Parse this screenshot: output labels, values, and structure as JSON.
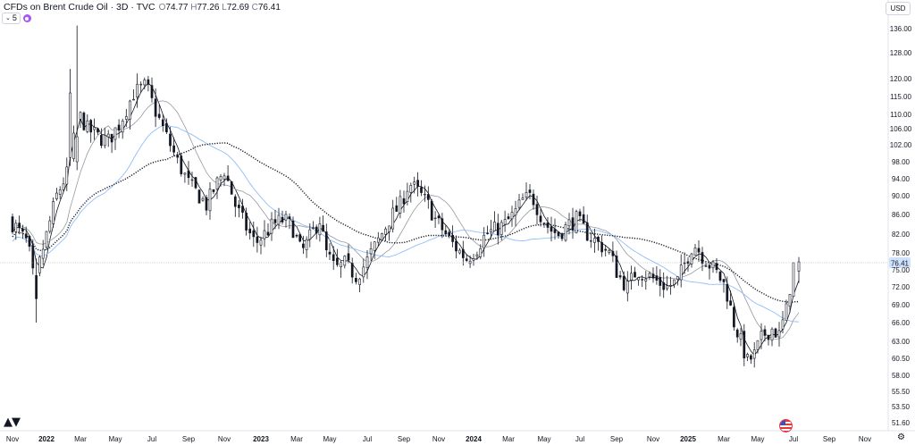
{
  "header": {
    "symbol": "CFDs on Brent Crude Oil · 3D · TVC",
    "open_label": "O",
    "open": "74.77",
    "high_label": "H",
    "high": "77.26",
    "low_label": "L",
    "low": "72.69",
    "close_label": "C",
    "close": "76.41",
    "indicator_count": "5",
    "currency": "USD"
  },
  "branding": {
    "logo_icon": "tradingview-logo-icon",
    "flag_icon": "us-flag-icon",
    "settings_icon": "gear-icon"
  },
  "colors": {
    "candle": "#131722",
    "ma_short": "#131722",
    "ma_mid": "#9598a1",
    "ma_long": "#90bff9",
    "ma_dotted": "#131722",
    "last_price_bg": "#cfe2fb",
    "grid": "#f0f3fa"
  },
  "chart_data": {
    "type": "candlestick",
    "ylim": [
      50.5,
      138.5
    ],
    "y_ticks": [
      "136.00",
      "128.00",
      "120.00",
      "115.00",
      "110.00",
      "106.00",
      "102.00",
      "98.00",
      "94.00",
      "90.00",
      "86.00",
      "82.00",
      "78.00",
      "76.41",
      "75.00",
      "72.00",
      "69.00",
      "66.00",
      "63.00",
      "60.50",
      "58.00",
      "55.50",
      "53.50",
      "51.60"
    ],
    "last_price": 76.41,
    "x_labels": [
      {
        "label": "Nov",
        "t": 0.0
      },
      {
        "label": "2022",
        "t": 2.0
      },
      {
        "label": "Mar",
        "t": 4.0
      },
      {
        "label": "May",
        "t": 6.0
      },
      {
        "label": "Jul",
        "t": 8.0
      },
      {
        "label": "Sep",
        "t": 10.0
      },
      {
        "label": "Nov",
        "t": 12.0
      },
      {
        "label": "2023",
        "t": 14.0
      },
      {
        "label": "Mar",
        "t": 16.0
      },
      {
        "label": "May",
        "t": 18.0
      },
      {
        "label": "Jul",
        "t": 20.0
      },
      {
        "label": "Sep",
        "t": 22.0
      },
      {
        "label": "Nov",
        "t": 24.0
      },
      {
        "label": "2024",
        "t": 26.0
      },
      {
        "label": "Mar",
        "t": 28.0
      },
      {
        "label": "May",
        "t": 30.0
      },
      {
        "label": "Jul",
        "t": 32.0
      },
      {
        "label": "Sep",
        "t": 34.0
      },
      {
        "label": "Nov",
        "t": 36.0
      },
      {
        "label": "2025",
        "t": 38.0
      },
      {
        "label": "Mar",
        "t": 40.0
      },
      {
        "label": "May",
        "t": 42.0
      },
      {
        "label": "Jul",
        "t": 44.0
      },
      {
        "label": "Sep",
        "t": 46.0
      },
      {
        "label": "Nov",
        "t": 48.0
      }
    ],
    "price_path": [
      [
        0.0,
        85
      ],
      [
        0.5,
        83
      ],
      [
        1.1,
        80
      ],
      [
        1.5,
        72
      ],
      [
        2.0,
        79
      ],
      [
        2.8,
        90
      ],
      [
        3.5,
        96
      ],
      [
        4.1,
        110
      ],
      [
        4.6,
        106
      ],
      [
        5.2,
        104
      ],
      [
        5.8,
        103
      ],
      [
        6.4,
        107
      ],
      [
        7.2,
        116
      ],
      [
        7.9,
        118
      ],
      [
        8.3,
        112
      ],
      [
        8.9,
        105
      ],
      [
        9.6,
        98
      ],
      [
        10.2,
        93
      ],
      [
        10.6,
        91
      ],
      [
        11.2,
        88
      ],
      [
        11.8,
        93
      ],
      [
        12.2,
        96
      ],
      [
        12.8,
        88
      ],
      [
        13.3,
        84
      ],
      [
        13.9,
        80
      ],
      [
        14.4,
        82
      ],
      [
        14.9,
        84
      ],
      [
        15.5,
        85
      ],
      [
        16.0,
        83
      ],
      [
        16.5,
        78
      ],
      [
        17.1,
        82
      ],
      [
        17.6,
        85
      ],
      [
        18.0,
        78
      ],
      [
        18.5,
        75
      ],
      [
        19.0,
        76
      ],
      [
        19.6,
        74
      ],
      [
        20.1,
        76
      ],
      [
        20.7,
        80
      ],
      [
        21.4,
        85
      ],
      [
        22.0,
        88
      ],
      [
        22.5,
        93
      ],
      [
        23.0,
        91
      ],
      [
        23.6,
        88
      ],
      [
        24.0,
        85
      ],
      [
        24.6,
        82
      ],
      [
        25.2,
        79
      ],
      [
        25.8,
        77
      ],
      [
        26.4,
        79
      ],
      [
        26.9,
        82
      ],
      [
        27.5,
        83
      ],
      [
        28.0,
        84
      ],
      [
        28.5,
        86
      ],
      [
        29.0,
        89
      ],
      [
        29.5,
        90
      ],
      [
        30.0,
        86
      ],
      [
        30.5,
        83
      ],
      [
        31.0,
        82
      ],
      [
        31.6,
        84
      ],
      [
        32.0,
        85
      ],
      [
        32.6,
        82
      ],
      [
        33.2,
        80
      ],
      [
        33.8,
        78
      ],
      [
        34.3,
        74
      ],
      [
        34.8,
        72
      ],
      [
        35.3,
        75
      ],
      [
        35.9,
        74
      ],
      [
        36.4,
        73
      ],
      [
        37.0,
        72
      ],
      [
        37.6,
        73
      ],
      [
        38.0,
        76
      ],
      [
        38.5,
        80
      ],
      [
        38.9,
        78
      ],
      [
        39.4,
        76
      ],
      [
        39.9,
        74
      ],
      [
        40.3,
        72
      ],
      [
        40.8,
        66
      ],
      [
        41.2,
        63
      ],
      [
        41.6,
        60
      ],
      [
        42.0,
        61
      ],
      [
        42.5,
        64
      ],
      [
        43.0,
        65
      ],
      [
        43.4,
        64
      ],
      [
        43.9,
        69
      ],
      [
        44.1,
        75
      ],
      [
        44.3,
        76.41
      ]
    ],
    "special_candles": [
      {
        "t": 3.8,
        "open": 98,
        "high": 137,
        "low": 96,
        "close": 104
      },
      {
        "t": 3.5,
        "open": 99,
        "high": 123,
        "low": 97,
        "close": 116
      },
      {
        "t": 1.3,
        "open": 74,
        "high": 77,
        "low": 66,
        "close": 70
      },
      {
        "t": 44.3,
        "open": 74.77,
        "high": 77.26,
        "low": 72.69,
        "close": 76.41
      }
    ],
    "series": [
      {
        "style": "solid-dark",
        "avg_window": 4,
        "offset": 0
      },
      {
        "style": "solid-grey",
        "avg_window": 12,
        "offset": 0.4
      },
      {
        "style": "solid-blue",
        "avg_window": 28,
        "offset": -2.0
      },
      {
        "style": "dotted",
        "avg_window": 45,
        "offset": -1.0
      }
    ],
    "candles_per_step": 5
  }
}
